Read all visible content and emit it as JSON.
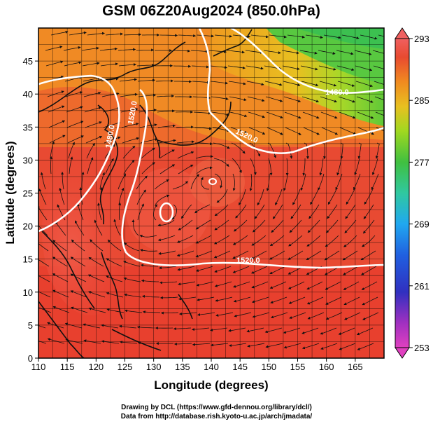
{
  "title": "GSM 06Z20Aug2024 (850.0hPa)",
  "x_axis": {
    "label": "Longitude (degrees)",
    "range": [
      110,
      170
    ],
    "ticks": [
      "110",
      "115",
      "120",
      "125",
      "130",
      "135",
      "140",
      "145",
      "150",
      "155",
      "160",
      "165"
    ]
  },
  "y_axis": {
    "label": "Latitude  (degrees)",
    "range": [
      0,
      50
    ],
    "ticks": [
      "0",
      "5",
      "10",
      "15",
      "20",
      "25",
      "30",
      "35",
      "40",
      "45"
    ]
  },
  "colorbar": {
    "range": [
      253,
      293
    ],
    "tick_labels": [
      "293",
      "285",
      "277",
      "269",
      "261",
      "253"
    ],
    "colors": [
      "#d040c8",
      "#4040c8",
      "#2060e0",
      "#20a0f0",
      "#30c8a0",
      "#40c040",
      "#80d020",
      "#d0d820",
      "#f0b020",
      "#f07020",
      "#e84030",
      "#f06060"
    ]
  },
  "contours": {
    "color": "#ffffff",
    "labels": [
      "1480.0",
      "1520.0",
      "1480.0",
      "1520.0",
      "1520.0"
    ]
  },
  "credits": {
    "line1": "Drawing by DCL (https://www.gfd-dennou.org/library/dcl/)",
    "line2": "Data from http://database.rish.kyoto-u.ac.jp/arch/jmadata/"
  }
}
